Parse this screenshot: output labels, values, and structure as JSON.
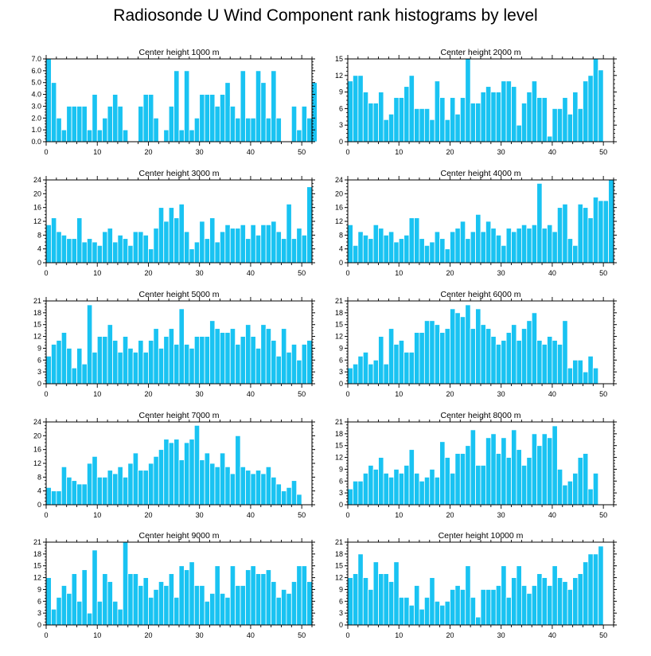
{
  "title": "Radiosonde U Wind Component rank histograms by level",
  "colors": {
    "bar": "#19c3f2",
    "bar_edge": "#ffffff",
    "axis": "#000000"
  },
  "chart_data": [
    {
      "type": "bar",
      "title": "Center height 1000 m",
      "ylim": [
        0,
        7
      ],
      "yticks": [
        "0.0",
        "1.0",
        "2.0",
        "3.0",
        "4.0",
        "5.0",
        "6.0",
        "7.0"
      ],
      "xlim": [
        0,
        52
      ],
      "xticks": [
        0,
        10,
        20,
        30,
        40,
        50
      ],
      "values": [
        7,
        5,
        2,
        1,
        3,
        3,
        3,
        3,
        1,
        4,
        1,
        2,
        3,
        4,
        3,
        1,
        0,
        0,
        3,
        4,
        4,
        2,
        0,
        1,
        3,
        6,
        1,
        6,
        1,
        2,
        4,
        4,
        4,
        3,
        4,
        5,
        3,
        2,
        6,
        2,
        2,
        6,
        5,
        2,
        6,
        2,
        0,
        0,
        3,
        1,
        3,
        2,
        5
      ]
    },
    {
      "type": "bar",
      "title": "Center height 2000 m",
      "ylim": [
        0,
        15
      ],
      "yticks": [
        "0",
        "3",
        "6",
        "9",
        "12",
        "15"
      ],
      "xlim": [
        0,
        52
      ],
      "xticks": [
        0,
        10,
        20,
        30,
        40,
        50
      ],
      "values": [
        11,
        12,
        12,
        9,
        7,
        7,
        9,
        4,
        5,
        8,
        8,
        10,
        12,
        6,
        6,
        6,
        4,
        11,
        8,
        4,
        8,
        5,
        8,
        15,
        7,
        7,
        9,
        10,
        9,
        9,
        11,
        11,
        10,
        3,
        7,
        9,
        11,
        8,
        8,
        1,
        6,
        6,
        8,
        5,
        9,
        6,
        11,
        12,
        15,
        13
      ]
    },
    {
      "type": "bar",
      "title": "Center height 3000 m",
      "ylim": [
        0,
        24
      ],
      "yticks": [
        "0",
        "4",
        "8",
        "12",
        "16",
        "20",
        "24"
      ],
      "xlim": [
        0,
        52
      ],
      "xticks": [
        0,
        10,
        20,
        30,
        40,
        50
      ],
      "values": [
        11,
        13,
        9,
        8,
        7,
        7,
        13,
        6,
        7,
        6,
        5,
        9,
        10,
        6,
        8,
        7,
        5,
        9,
        9,
        8,
        4,
        10,
        16,
        12,
        16,
        13,
        17,
        9,
        4,
        6,
        12,
        7,
        13,
        6,
        9,
        11,
        10,
        10,
        11,
        7,
        11,
        8,
        11,
        11,
        12,
        9,
        7,
        17,
        7,
        10,
        8,
        22
      ]
    },
    {
      "type": "bar",
      "title": "Center height 4000 m",
      "ylim": [
        0,
        24
      ],
      "yticks": [
        "0",
        "4",
        "8",
        "12",
        "16",
        "20",
        "24"
      ],
      "xlim": [
        0,
        52
      ],
      "xticks": [
        0,
        10,
        20,
        30,
        40,
        50
      ],
      "values": [
        11,
        5,
        9,
        8,
        7,
        11,
        10,
        8,
        9,
        6,
        7,
        8,
        13,
        13,
        7,
        5,
        6,
        9,
        7,
        4,
        9,
        10,
        12,
        7,
        9,
        14,
        9,
        12,
        10,
        8,
        5,
        10,
        9,
        10,
        11,
        10,
        11,
        23,
        10,
        11,
        9,
        16,
        17,
        7,
        5,
        17,
        16,
        13,
        19,
        18,
        18,
        24
      ]
    },
    {
      "type": "bar",
      "title": "Center height 5000 m",
      "ylim": [
        0,
        21
      ],
      "yticks": [
        "0",
        "3",
        "6",
        "9",
        "12",
        "15",
        "18",
        "21"
      ],
      "xlim": [
        0,
        52
      ],
      "xticks": [
        0,
        10,
        20,
        30,
        40,
        50
      ],
      "values": [
        7,
        10,
        11,
        13,
        9,
        4,
        9,
        5,
        20,
        8,
        12,
        12,
        15,
        11,
        8,
        12,
        9,
        8,
        11,
        8,
        11,
        14,
        9,
        12,
        14,
        10,
        19,
        10,
        9,
        12,
        12,
        12,
        16,
        14,
        13,
        13,
        14,
        10,
        12,
        15,
        12,
        9,
        15,
        14,
        11,
        7,
        14,
        8,
        10,
        6,
        10,
        11
      ]
    },
    {
      "type": "bar",
      "title": "Center height 6000 m",
      "ylim": [
        0,
        21
      ],
      "yticks": [
        "0",
        "3",
        "6",
        "9",
        "12",
        "15",
        "18",
        "21"
      ],
      "xlim": [
        0,
        52
      ],
      "xticks": [
        0,
        10,
        20,
        30,
        40,
        50
      ],
      "values": [
        4,
        5,
        7,
        8,
        5,
        6,
        12,
        5,
        14,
        10,
        11,
        8,
        8,
        13,
        13,
        16,
        16,
        15,
        13,
        14,
        19,
        18,
        17,
        20,
        14,
        19,
        15,
        14,
        12,
        10,
        11,
        13,
        15,
        11,
        14,
        16,
        18,
        11,
        10,
        12,
        11,
        10,
        16,
        4,
        6,
        6,
        3,
        7,
        4
      ]
    },
    {
      "type": "bar",
      "title": "Center height 7000 m",
      "ylim": [
        0,
        24
      ],
      "yticks": [
        "0",
        "4",
        "8",
        "12",
        "16",
        "20",
        "24"
      ],
      "xlim": [
        0,
        52
      ],
      "xticks": [
        0,
        10,
        20,
        30,
        40,
        50
      ],
      "values": [
        5,
        4,
        4,
        11,
        8,
        7,
        6,
        6,
        12,
        14,
        8,
        8,
        10,
        9,
        11,
        8,
        12,
        15,
        10,
        10,
        12,
        14,
        16,
        19,
        18,
        19,
        13,
        18,
        19,
        23,
        13,
        15,
        12,
        11,
        15,
        11,
        9,
        20,
        11,
        10,
        9,
        10,
        9,
        11,
        8,
        6,
        4,
        5,
        7,
        3
      ]
    },
    {
      "type": "bar",
      "title": "Center height 8000 m",
      "ylim": [
        0,
        21
      ],
      "yticks": [
        "0",
        "3",
        "6",
        "9",
        "12",
        "15",
        "18",
        "21"
      ],
      "xlim": [
        0,
        52
      ],
      "xticks": [
        0,
        10,
        20,
        30,
        40,
        50
      ],
      "values": [
        4,
        6,
        6,
        8,
        10,
        9,
        12,
        8,
        7,
        9,
        8,
        10,
        14,
        8,
        6,
        7,
        9,
        7,
        16,
        12,
        8,
        13,
        13,
        15,
        19,
        10,
        10,
        17,
        18,
        13,
        17,
        12,
        19,
        14,
        10,
        12,
        18,
        15,
        18,
        17,
        20,
        9,
        5,
        6,
        8,
        12,
        13,
        4,
        8
      ]
    },
    {
      "type": "bar",
      "title": "Center height 9000 m",
      "ylim": [
        0,
        21
      ],
      "yticks": [
        "0",
        "3",
        "6",
        "9",
        "12",
        "15",
        "18",
        "21"
      ],
      "xlim": [
        0,
        52
      ],
      "xticks": [
        0,
        10,
        20,
        30,
        40,
        50
      ],
      "values": [
        12,
        4,
        7,
        10,
        8,
        13,
        6,
        14,
        3,
        19,
        6,
        13,
        11,
        6,
        4,
        21,
        13,
        13,
        10,
        12,
        7,
        9,
        11,
        10,
        13,
        7,
        15,
        14,
        16,
        10,
        10,
        6,
        8,
        15,
        8,
        7,
        15,
        10,
        10,
        14,
        15,
        13,
        13,
        14,
        11,
        7,
        9,
        8,
        11,
        15,
        15,
        11
      ]
    },
    {
      "type": "bar",
      "title": "Center height 10000 m",
      "ylim": [
        0,
        21
      ],
      "yticks": [
        "0",
        "3",
        "6",
        "9",
        "12",
        "15",
        "18",
        "21"
      ],
      "xlim": [
        0,
        52
      ],
      "xticks": [
        0,
        10,
        20,
        30,
        40,
        50
      ],
      "values": [
        12,
        13,
        18,
        12,
        9,
        16,
        13,
        13,
        11,
        16,
        7,
        7,
        5,
        10,
        4,
        7,
        12,
        6,
        5,
        6,
        9,
        10,
        9,
        15,
        7,
        2,
        9,
        9,
        9,
        10,
        15,
        7,
        12,
        15,
        10,
        8,
        10,
        13,
        12,
        10,
        15,
        12,
        11,
        9,
        12,
        13,
        16,
        18,
        18,
        20
      ]
    }
  ]
}
